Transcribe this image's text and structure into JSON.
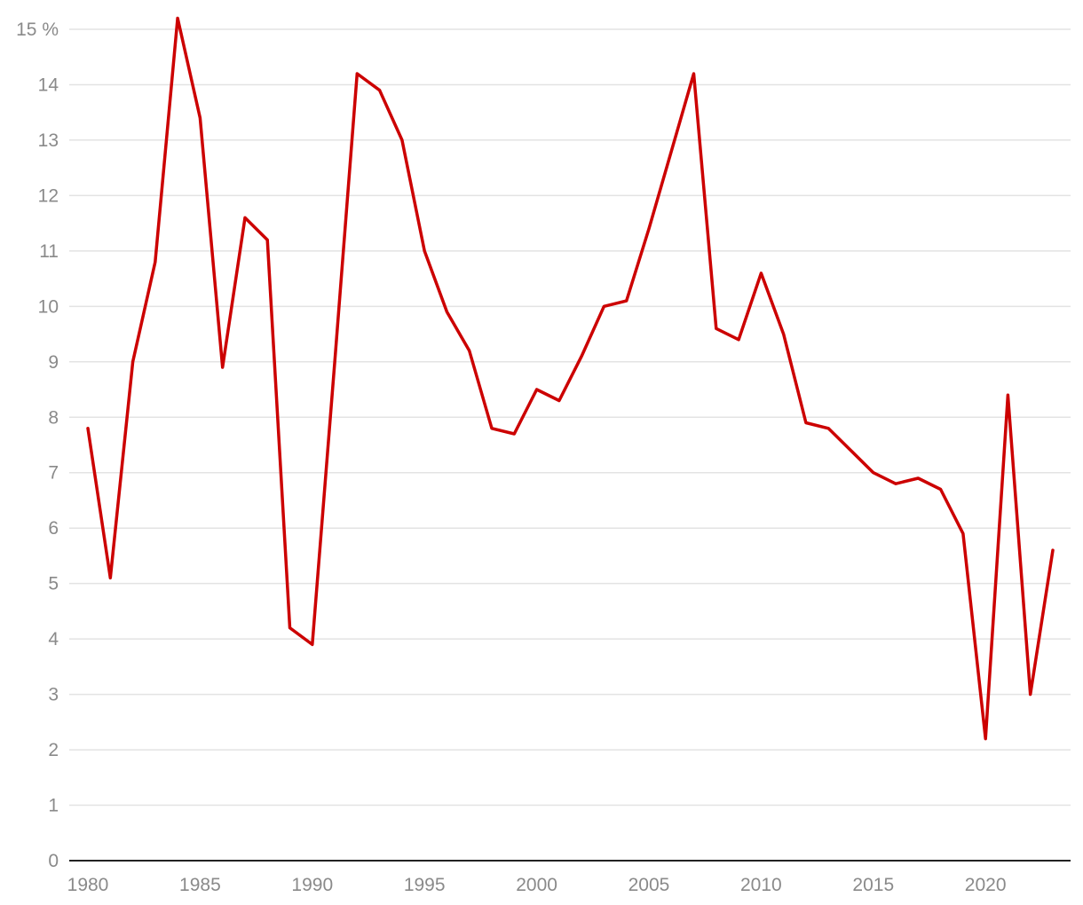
{
  "chart_data": {
    "type": "line",
    "title": "",
    "xlabel": "",
    "ylabel": "",
    "y_unit": "%",
    "xlim": [
      1980,
      2023
    ],
    "ylim": [
      0,
      15
    ],
    "grid": "horizontal",
    "x_ticks": [
      1980,
      1985,
      1990,
      1995,
      2000,
      2005,
      2010,
      2015,
      2020
    ],
    "y_ticks": [
      0,
      1,
      2,
      3,
      4,
      5,
      6,
      7,
      8,
      9,
      10,
      11,
      12,
      13,
      14,
      15
    ],
    "x": [
      1980,
      1981,
      1982,
      1983,
      1984,
      1985,
      1986,
      1987,
      1988,
      1989,
      1990,
      1991,
      1992,
      1993,
      1994,
      1995,
      1996,
      1997,
      1998,
      1999,
      2000,
      2001,
      2002,
      2003,
      2004,
      2005,
      2006,
      2007,
      2008,
      2009,
      2010,
      2011,
      2012,
      2013,
      2014,
      2015,
      2016,
      2017,
      2018,
      2019,
      2020,
      2021,
      2022,
      2023
    ],
    "series": [
      {
        "color": "#cc0000",
        "values": [
          7.8,
          5.1,
          9.0,
          10.8,
          15.2,
          13.4,
          8.9,
          11.6,
          11.2,
          4.2,
          3.9,
          9.0,
          14.2,
          13.9,
          13.0,
          11.0,
          9.9,
          9.2,
          7.8,
          7.7,
          8.5,
          8.3,
          9.1,
          10.0,
          10.1,
          11.4,
          12.8,
          14.2,
          9.6,
          9.4,
          10.6,
          9.5,
          7.9,
          7.8,
          7.4,
          7.0,
          6.8,
          6.9,
          6.7,
          5.9,
          2.2,
          8.4,
          3.0,
          5.6
        ]
      }
    ]
  }
}
